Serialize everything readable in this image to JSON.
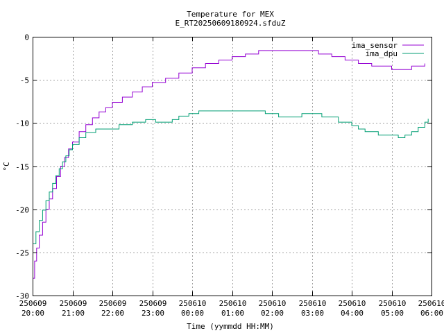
{
  "chart_data": {
    "type": "line",
    "title": "Temperature for MEX",
    "subtitle": "E_RT20250609180924.sfduZ",
    "xlabel": "Time (yymmdd HH:MM)",
    "ylabel": "°C",
    "ylim": [
      -30,
      0
    ],
    "yticks": [
      0,
      -5,
      -10,
      -15,
      -20,
      -25,
      -30
    ],
    "xlim": [
      "2025-06-09 20:00",
      "2025-06-10 06:00"
    ],
    "xticks": [
      {
        "date": "250609",
        "time": "20:00"
      },
      {
        "date": "250609",
        "time": "21:00"
      },
      {
        "date": "250609",
        "time": "22:00"
      },
      {
        "date": "250609",
        "time": "23:00"
      },
      {
        "date": "250610",
        "time": "00:00"
      },
      {
        "date": "250610",
        "time": "01:00"
      },
      {
        "date": "250610",
        "time": "02:00"
      },
      {
        "date": "250610",
        "time": "03:00"
      },
      {
        "date": "250610",
        "time": "04:00"
      },
      {
        "date": "250610",
        "time": "05:00"
      },
      {
        "date": "250610",
        "time": "06:00"
      }
    ],
    "grid": true,
    "legend_position": "top-right",
    "series": [
      {
        "name": "ima_sensor",
        "color": "#9400d3",
        "points": [
          [
            "2025-06-09 20:00",
            -28.0
          ],
          [
            "2025-06-09 20:03",
            -26.0
          ],
          [
            "2025-06-09 20:06",
            -24.5
          ],
          [
            "2025-06-09 20:10",
            -23.0
          ],
          [
            "2025-06-09 20:15",
            -21.5
          ],
          [
            "2025-06-09 20:20",
            -20.0
          ],
          [
            "2025-06-09 20:25",
            -18.8
          ],
          [
            "2025-06-09 20:30",
            -17.6
          ],
          [
            "2025-06-09 20:36",
            -16.2
          ],
          [
            "2025-06-09 20:42",
            -15.0
          ],
          [
            "2025-06-09 20:48",
            -14.0
          ],
          [
            "2025-06-09 20:54",
            -13.0
          ],
          [
            "2025-06-09 21:00",
            -12.2
          ],
          [
            "2025-06-09 21:10",
            -11.0
          ],
          [
            "2025-06-09 21:20",
            -10.2
          ],
          [
            "2025-06-09 21:30",
            -9.4
          ],
          [
            "2025-06-09 21:40",
            -8.7
          ],
          [
            "2025-06-09 21:50",
            -8.2
          ],
          [
            "2025-06-09 22:00",
            -7.6
          ],
          [
            "2025-06-09 22:15",
            -7.0
          ],
          [
            "2025-06-09 22:30",
            -6.4
          ],
          [
            "2025-06-09 22:45",
            -5.8
          ],
          [
            "2025-06-09 23:00",
            -5.3
          ],
          [
            "2025-06-09 23:20",
            -4.8
          ],
          [
            "2025-06-09 23:40",
            -4.2
          ],
          [
            "2025-06-10 00:00",
            -3.6
          ],
          [
            "2025-06-10 00:20",
            -3.1
          ],
          [
            "2025-06-10 00:40",
            -2.7
          ],
          [
            "2025-06-10 01:00",
            -2.3
          ],
          [
            "2025-06-10 01:20",
            -2.0
          ],
          [
            "2025-06-10 01:40",
            -1.6
          ],
          [
            "2025-06-10 02:00",
            -1.6
          ],
          [
            "2025-06-10 02:30",
            -1.6
          ],
          [
            "2025-06-10 03:00",
            -1.6
          ],
          [
            "2025-06-10 03:10",
            -2.0
          ],
          [
            "2025-06-10 03:30",
            -2.3
          ],
          [
            "2025-06-10 03:50",
            -2.7
          ],
          [
            "2025-06-10 04:10",
            -3.1
          ],
          [
            "2025-06-10 04:30",
            -3.4
          ],
          [
            "2025-06-10 04:50",
            -3.4
          ],
          [
            "2025-06-10 05:00",
            -3.8
          ],
          [
            "2025-06-10 05:20",
            -3.8
          ],
          [
            "2025-06-10 05:30",
            -3.4
          ],
          [
            "2025-06-10 05:50",
            -3.1
          ]
        ]
      },
      {
        "name": "ima_dpu",
        "color": "#009e73",
        "points": [
          [
            "2025-06-09 20:00",
            -24.0
          ],
          [
            "2025-06-09 20:05",
            -22.6
          ],
          [
            "2025-06-09 20:10",
            -21.3
          ],
          [
            "2025-06-09 20:15",
            -20.1
          ],
          [
            "2025-06-09 20:20",
            -19.0
          ],
          [
            "2025-06-09 20:25",
            -18.0
          ],
          [
            "2025-06-09 20:30",
            -17.0
          ],
          [
            "2025-06-09 20:35",
            -16.1
          ],
          [
            "2025-06-09 20:40",
            -15.3
          ],
          [
            "2025-06-09 20:45",
            -14.5
          ],
          [
            "2025-06-09 20:50",
            -13.8
          ],
          [
            "2025-06-09 20:55",
            -13.1
          ],
          [
            "2025-06-09 21:00",
            -12.5
          ],
          [
            "2025-06-09 21:10",
            -11.7
          ],
          [
            "2025-06-09 21:20",
            -11.1
          ],
          [
            "2025-06-09 21:35",
            -10.7
          ],
          [
            "2025-06-09 22:00",
            -10.7
          ],
          [
            "2025-06-09 22:10",
            -10.2
          ],
          [
            "2025-06-09 22:30",
            -9.9
          ],
          [
            "2025-06-09 22:50",
            -9.6
          ],
          [
            "2025-06-09 23:05",
            -9.9
          ],
          [
            "2025-06-09 23:30",
            -9.6
          ],
          [
            "2025-06-09 23:40",
            -9.2
          ],
          [
            "2025-06-09 23:55",
            -8.9
          ],
          [
            "2025-06-10 00:10",
            -8.6
          ],
          [
            "2025-06-10 01:00",
            -8.6
          ],
          [
            "2025-06-10 01:30",
            -8.6
          ],
          [
            "2025-06-10 01:50",
            -8.9
          ],
          [
            "2025-06-10 02:10",
            -9.3
          ],
          [
            "2025-06-10 02:30",
            -9.3
          ],
          [
            "2025-06-10 02:45",
            -8.9
          ],
          [
            "2025-06-10 03:15",
            -9.3
          ],
          [
            "2025-06-10 03:40",
            -9.9
          ],
          [
            "2025-06-10 04:00",
            -10.3
          ],
          [
            "2025-06-10 04:10",
            -10.7
          ],
          [
            "2025-06-10 04:20",
            -11.0
          ],
          [
            "2025-06-10 04:40",
            -11.4
          ],
          [
            "2025-06-10 05:10",
            -11.7
          ],
          [
            "2025-06-10 05:20",
            -11.4
          ],
          [
            "2025-06-10 05:30",
            -11.0
          ],
          [
            "2025-06-10 05:40",
            -10.5
          ],
          [
            "2025-06-10 05:50",
            -9.9
          ],
          [
            "2025-06-10 05:55",
            -9.5
          ]
        ]
      }
    ]
  }
}
